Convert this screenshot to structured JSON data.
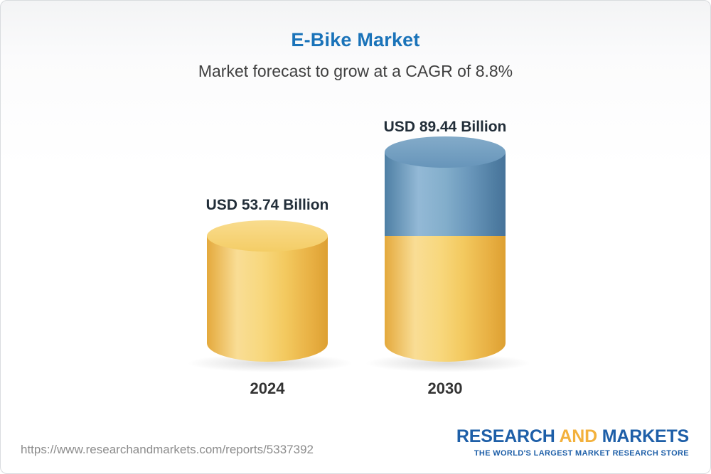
{
  "chart_data": {
    "type": "bar",
    "bar_style": "3d-cylinder",
    "title": "E-Bike Market",
    "subtitle": "Market forecast to grow at a CAGR of 8.8%",
    "categories": [
      "2024",
      "2030"
    ],
    "values": [
      53.74,
      89.44
    ],
    "value_labels": [
      "USD 53.74 Billion",
      "USD 89.44 Billion"
    ],
    "unit": "USD Billion",
    "cagr_percent": 8.8,
    "ylim": [
      0,
      89.44
    ],
    "legend_position": "none",
    "grid": false,
    "colors": {
      "base_bar": "#F2C85F",
      "growth_segment": "#6A97BB",
      "title_text": "#1A73B9"
    }
  },
  "footer": {
    "url": "https://www.researchandmarkets.com/reports/5337392",
    "logo": {
      "research": "RESEARCH",
      "and": "AND",
      "markets": "MARKETS",
      "tagline": "THE WORLD'S LARGEST MARKET RESEARCH STORE"
    }
  }
}
